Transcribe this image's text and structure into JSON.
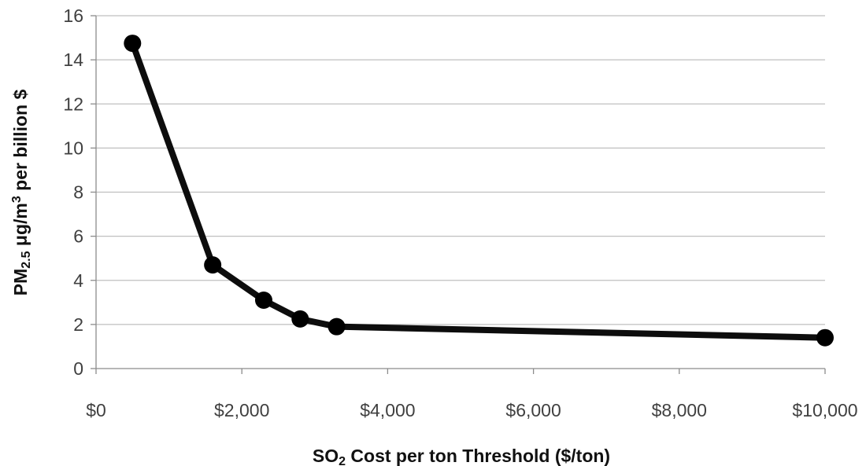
{
  "chart_data": {
    "type": "line",
    "title": "",
    "xlabel": {
      "prefix": "SO",
      "subscript": "2",
      "suffix": " Cost per ton Threshold ($/ton)"
    },
    "ylabel": {
      "prefix": "PM",
      "subscript": "2.5",
      "middle": " μg/m",
      "superscript": "3",
      "suffix": " per billion $"
    },
    "xlim": [
      0,
      10000
    ],
    "ylim": [
      0,
      16
    ],
    "xticks": [
      0,
      2000,
      4000,
      6000,
      8000,
      10000
    ],
    "xtick_labels": [
      "$0",
      "$2,000",
      "$4,000",
      "$6,000",
      "$8,000",
      "$10,000"
    ],
    "yticks": [
      0,
      2,
      4,
      6,
      8,
      10,
      12,
      14,
      16
    ],
    "ytick_labels": [
      "0",
      "2",
      "4",
      "6",
      "8",
      "10",
      "12",
      "14",
      "16"
    ],
    "grid": {
      "horizontal": true,
      "vertical": false
    },
    "legend": "none",
    "series": [
      {
        "color": "#000000",
        "marker": "circle",
        "x": [
          500,
          1600,
          2300,
          2800,
          3300,
          10000
        ],
        "y": [
          14.75,
          4.7,
          3.1,
          2.25,
          1.9,
          1.4
        ]
      }
    ]
  }
}
